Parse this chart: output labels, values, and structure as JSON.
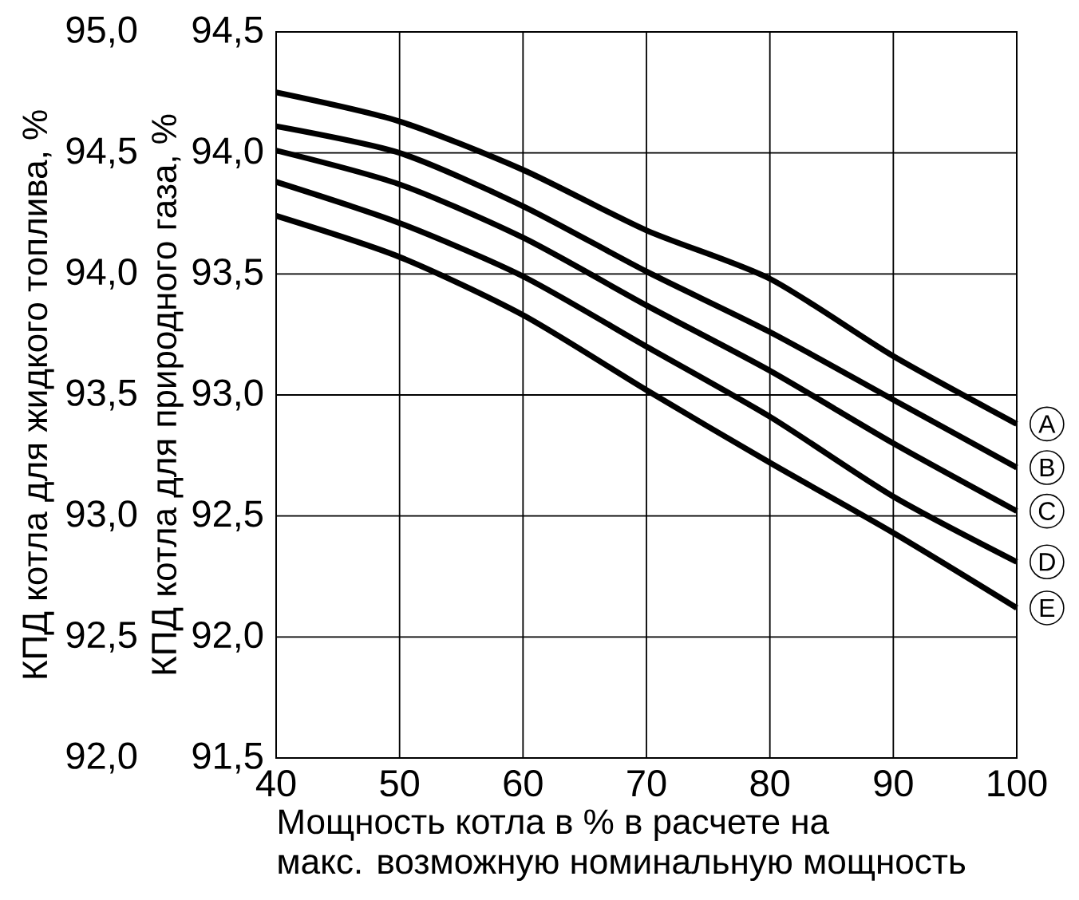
{
  "chart_data": {
    "type": "line",
    "xlabel": "Мощность котла в % в расчете на макс. возможную номинальную мощность",
    "ylabel": "КПД котла для природного газа, %",
    "y2label": "КПД котла для жидкого топлива, %",
    "x": [
      40,
      50,
      60,
      70,
      80,
      90,
      100
    ],
    "series": [
      {
        "name": "A",
        "color": "#000000",
        "values": [
          94.25,
          94.13,
          93.93,
          93.68,
          93.48,
          93.16,
          92.88
        ]
      },
      {
        "name": "B",
        "color": "#000000",
        "values": [
          94.11,
          94.0,
          93.78,
          93.51,
          93.26,
          92.98,
          92.7
        ]
      },
      {
        "name": "C",
        "color": "#000000",
        "values": [
          94.01,
          93.87,
          93.65,
          93.37,
          93.1,
          92.8,
          92.52
        ]
      },
      {
        "name": "D",
        "color": "#000000",
        "values": [
          93.88,
          93.71,
          93.49,
          93.2,
          92.91,
          92.58,
          92.31
        ]
      },
      {
        "name": "E",
        "color": "#000000",
        "values": [
          93.74,
          93.57,
          93.33,
          93.02,
          92.72,
          92.43,
          92.12
        ]
      }
    ],
    "xlim": [
      40,
      100
    ],
    "xticks": [
      40,
      50,
      60,
      70,
      80,
      90,
      100
    ],
    "ylim": [
      91.5,
      94.5
    ],
    "yticks": [
      {
        "value": 91.5,
        "label": "91,5"
      },
      {
        "value": 92.0,
        "label": "92,0"
      },
      {
        "value": 92.5,
        "label": "92,5"
      },
      {
        "value": 93.0,
        "label": "93,0"
      },
      {
        "value": 93.5,
        "label": "93,5"
      },
      {
        "value": 94.0,
        "label": "94,0"
      },
      {
        "value": 94.5,
        "label": "94,5"
      }
    ],
    "y2lim": [
      92.0,
      95.0
    ],
    "y2ticks": [
      {
        "value": 92.0,
        "label": "92,0"
      },
      {
        "value": 92.5,
        "label": "92,5"
      },
      {
        "value": 93.0,
        "label": "93,0"
      },
      {
        "value": 93.5,
        "label": "93,5"
      },
      {
        "value": 94.0,
        "label": "94,0"
      },
      {
        "value": 94.5,
        "label": "94,5"
      },
      {
        "value": 95.0,
        "label": "95,0"
      }
    ],
    "grid": true,
    "legend": "right",
    "marker": "none",
    "line_style": "solid"
  }
}
